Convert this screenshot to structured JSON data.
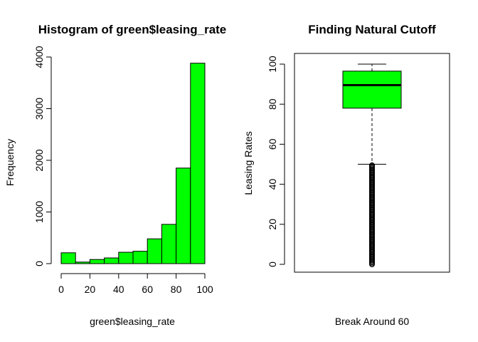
{
  "chart_data": [
    {
      "type": "bar",
      "subtype": "histogram",
      "title": "Histogram of green$leasing_rate",
      "xlabel": "green$leasing_rate",
      "ylabel": "Frequency",
      "bins": [
        {
          "from": 0,
          "to": 10,
          "count": 210
        },
        {
          "from": 10,
          "to": 20,
          "count": 30
        },
        {
          "from": 20,
          "to": 30,
          "count": 80
        },
        {
          "from": 30,
          "to": 40,
          "count": 110
        },
        {
          "from": 40,
          "to": 50,
          "count": 220
        },
        {
          "from": 50,
          "to": 60,
          "count": 240
        },
        {
          "from": 60,
          "to": 70,
          "count": 480
        },
        {
          "from": 70,
          "to": 80,
          "count": 760
        },
        {
          "from": 80,
          "to": 90,
          "count": 1850
        },
        {
          "from": 90,
          "to": 100,
          "count": 3880
        }
      ],
      "xticks": [
        "0",
        "20",
        "40",
        "60",
        "80",
        "100"
      ],
      "yticks": [
        "0",
        "1000",
        "2000",
        "3000",
        "4000"
      ],
      "xlim": [
        0,
        100
      ],
      "ylim": [
        0,
        4000
      ],
      "bar_color": "#00FF00",
      "grid": false
    },
    {
      "type": "boxplot",
      "title": "Finding Natural Cutoff",
      "xlabel": "Break Around 60",
      "ylabel": "Leasing Rates",
      "stats": {
        "min_whisker": 50,
        "q1": 78,
        "median": 89.5,
        "q3": 96.5,
        "max_whisker": 100
      },
      "outliers": [
        0,
        0.5,
        1,
        1.5,
        2,
        2.5,
        3,
        3.5,
        4,
        4.5,
        5,
        5.5,
        6,
        6.5,
        7,
        7.5,
        8,
        8.5,
        9,
        9.5,
        10,
        10.5,
        11,
        11.5,
        12,
        12.5,
        13,
        13.5,
        14,
        14.5,
        15,
        15.5,
        16,
        16.5,
        17,
        17.5,
        18,
        18.5,
        19,
        19.5,
        20,
        20.5,
        21,
        21.5,
        22,
        22.5,
        23,
        23.5,
        24,
        24.5,
        25,
        25.5,
        26,
        26.5,
        27,
        27.5,
        28,
        28.5,
        29,
        29.5,
        30,
        30.5,
        31,
        31.5,
        32,
        32.5,
        33,
        33.5,
        34,
        34.5,
        35,
        35.5,
        36,
        36.5,
        37,
        37.5,
        38,
        38.5,
        39,
        39.5,
        40,
        40.5,
        41,
        41.5,
        42,
        42.5,
        43,
        43.5,
        44,
        44.5,
        45,
        45.5,
        46,
        46.5,
        47,
        47.5,
        48,
        48.5,
        49,
        49.5
      ],
      "yticks": [
        "0",
        "20",
        "40",
        "60",
        "80",
        "100"
      ],
      "box_color": "#00FF00",
      "grid": false
    }
  ]
}
